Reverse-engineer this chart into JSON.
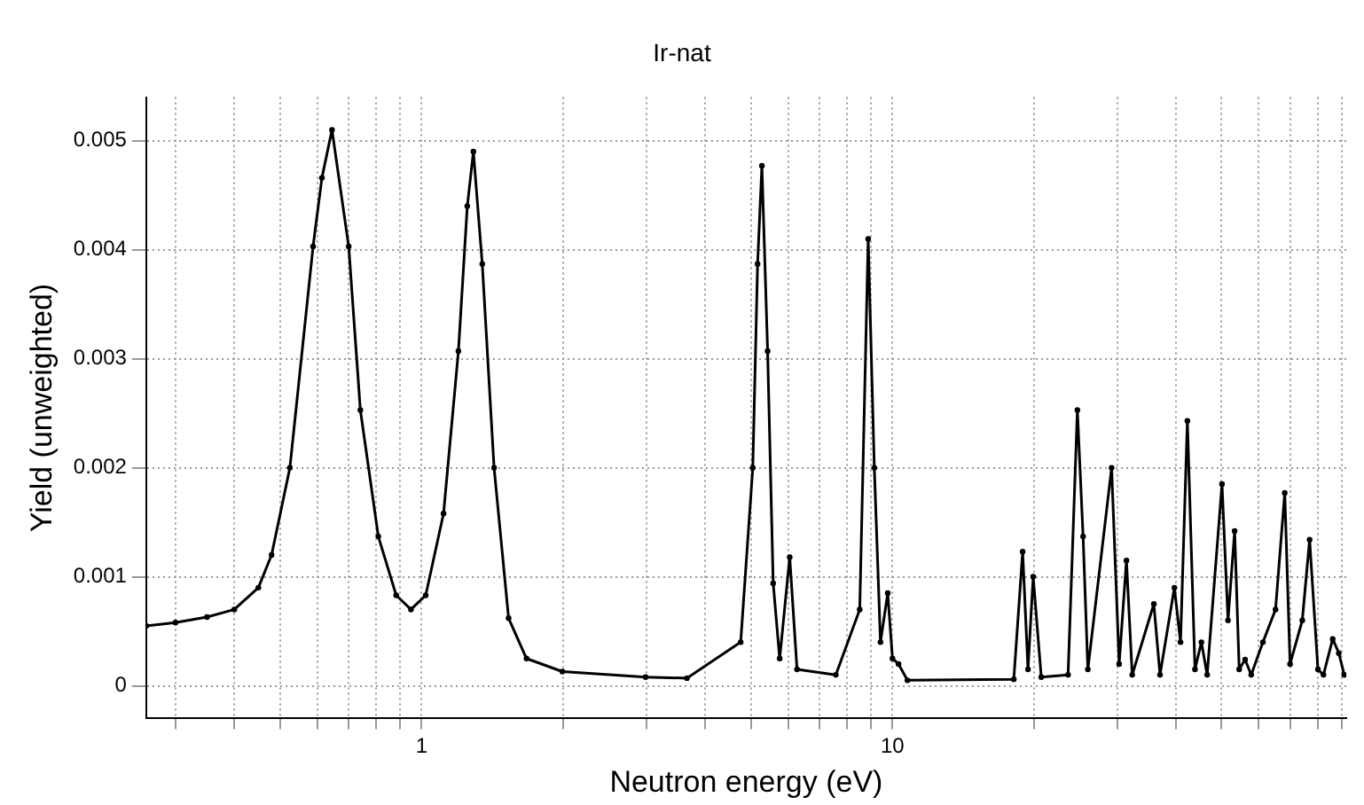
{
  "chart_data": {
    "type": "line",
    "title": "Ir-nat",
    "xlabel": "Neutron energy (eV)",
    "ylabel": "Yield (unweighted)",
    "x": [
      0.26,
      0.3,
      0.35,
      0.4,
      0.45,
      0.48,
      0.525,
      0.588,
      0.614,
      0.645,
      0.7,
      0.741,
      0.809,
      0.883,
      0.949,
      1.02,
      1.113,
      1.197,
      1.25,
      1.288,
      1.345,
      1.425,
      1.53,
      1.67,
      1.99,
      2.99,
      3.66,
      4.76,
      5.05,
      5.17,
      5.28,
      5.43,
      5.58,
      5.76,
      6.05,
      6.27,
      7.58,
      8.52,
      8.88,
      9.15,
      9.43,
      9.77,
      10,
      10.3,
      10.76,
      18.1,
      18.9,
      19.4,
      19.9,
      20.7,
      23.6,
      24.7,
      25.4,
      26,
      29.2,
      30.3,
      31.4,
      32.3,
      35.9,
      37,
      39.7,
      40.9,
      42.3,
      43.9,
      45.3,
      46.6,
      50.1,
      51.6,
      53.3,
      54.5,
      56.1,
      57.8,
      61.2,
      65.1,
      68.1,
      69.9,
      74.2,
      76.9,
      80.1,
      82.3,
      86.1,
      88.7,
      91.1
    ],
    "series": [
      {
        "color": "#000000",
        "values": [
          0.00055,
          0.00058,
          0.00063,
          0.0007,
          0.0009,
          0.0012,
          0.002,
          0.00403,
          0.00466,
          0.0051,
          0.00403,
          0.00253,
          0.00137,
          0.00083,
          0.0007,
          0.00083,
          0.00158,
          0.00307,
          0.0044,
          0.0049,
          0.00387,
          0.002,
          0.00062,
          0.00025,
          0.00013,
          8e-05,
          7e-05,
          0.0004,
          0.002,
          0.00387,
          0.00477,
          0.00307,
          0.00094,
          0.00025,
          0.00118,
          0.00015,
          0.0001,
          0.0007,
          0.0041,
          0.002,
          0.0004,
          0.00085,
          0.00025,
          0.0002,
          5e-05,
          6e-05,
          0.00123,
          0.00015,
          0.001,
          8e-05,
          0.0001,
          0.00253,
          0.00137,
          0.00015,
          0.002,
          0.0002,
          0.00115,
          0.0001,
          0.00075,
          0.0001,
          0.0009,
          0.0004,
          0.00243,
          0.00015,
          0.0004,
          0.0001,
          0.00185,
          0.0006,
          0.00142,
          0.00015,
          0.00024,
          0.0001,
          0.0004,
          0.0007,
          0.00177,
          0.0002,
          0.0006,
          0.00134,
          0.00015,
          0.0001,
          0.00043,
          0.0003,
          0.0001
        ]
      }
    ],
    "log": "x",
    "xlim": [
      0.26,
      92
    ],
    "ylim": [
      -0.0003,
      0.0054
    ],
    "xticks": [
      {
        "value": 0.3,
        "label": null
      },
      {
        "value": 0.4,
        "label": null
      },
      {
        "value": 0.5,
        "label": null
      },
      {
        "value": 0.6,
        "label": null
      },
      {
        "value": 0.7,
        "label": null
      },
      {
        "value": 0.8,
        "label": null
      },
      {
        "value": 0.9,
        "label": null
      },
      1,
      {
        "value": 2,
        "label": null
      },
      {
        "value": 3,
        "label": null
      },
      {
        "value": 4,
        "label": null
      },
      {
        "value": 5,
        "label": null
      },
      {
        "value": 6,
        "label": null
      },
      {
        "value": 7,
        "label": null
      },
      {
        "value": 8,
        "label": null
      },
      {
        "value": 9,
        "label": null
      },
      10,
      {
        "value": 20,
        "label": null
      },
      {
        "value": 30,
        "label": null
      },
      {
        "value": 40,
        "label": null
      },
      {
        "value": 50,
        "label": null
      },
      {
        "value": 60,
        "label": null
      },
      {
        "value": 70,
        "label": null
      },
      {
        "value": 80,
        "label": null
      },
      {
        "value": 90,
        "label": null
      }
    ],
    "yticks": [
      0,
      0.001,
      0.002,
      0.003,
      0.004,
      0.005
    ],
    "grid": true,
    "legend": false,
    "marker": "circle",
    "line_style": "solid"
  }
}
